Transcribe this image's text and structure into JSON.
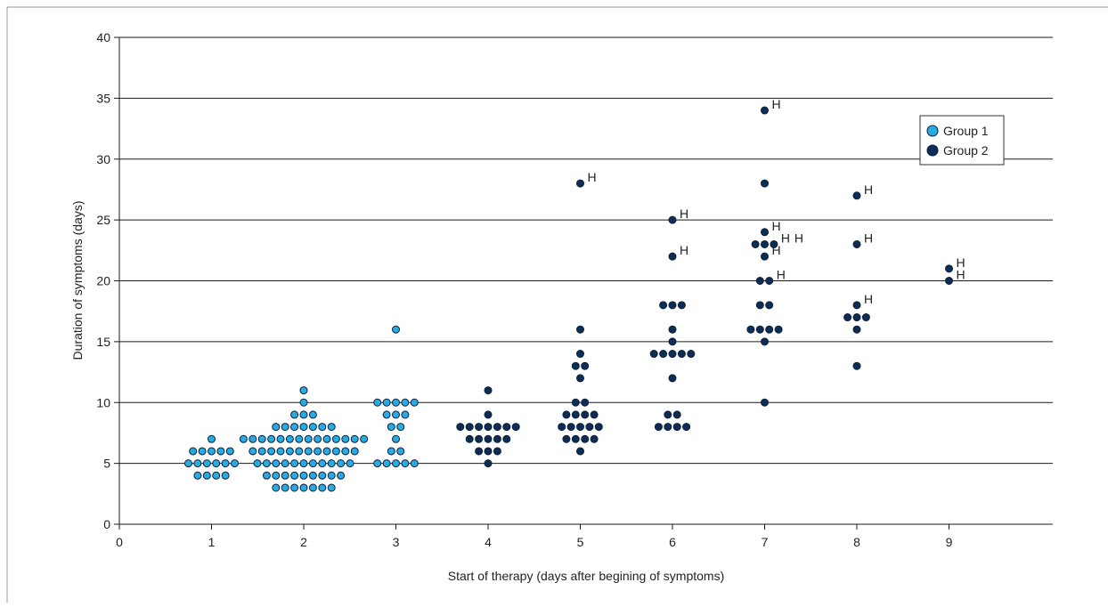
{
  "chart_data": {
    "type": "scatter",
    "title": "",
    "xlabel": "Start of therapy (days after begining of symptoms)",
    "ylabel": "Duration of symptoms (days)",
    "xlim": [
      0,
      10
    ],
    "ylim": [
      0,
      40
    ],
    "x_ticks": [
      "0",
      "1",
      "2",
      "3",
      "4",
      "5",
      "6",
      "7",
      "8",
      "9"
    ],
    "y_ticks": [
      "0",
      "5",
      "10",
      "15",
      "20",
      "25",
      "30",
      "35",
      "40"
    ],
    "grid": "horizontal",
    "legend_position": "top-right",
    "hospitalization_marker": "H",
    "series": [
      {
        "name": "Group 1",
        "color": "#29abe2",
        "groups": [
          {
            "x": 1,
            "counts": {
              "4": 4,
              "5": 6,
              "6": 5,
              "7": 1
            }
          },
          {
            "x": 2,
            "counts": {
              "3": 7,
              "4": 9,
              "5": 11,
              "6": 12,
              "7": 14,
              "8": 7,
              "9": 3,
              "10": 1,
              "11": 1
            }
          },
          {
            "x": 3,
            "counts": {
              "5": 5,
              "6": 2,
              "7": 1,
              "8": 2,
              "9": 3,
              "10": 5,
              "16": 1
            }
          }
        ]
      },
      {
        "name": "Group 2",
        "color": "#0d2d55",
        "groups": [
          {
            "x": 4,
            "counts": {
              "5": 1,
              "6": 3,
              "7": 5,
              "8": 7,
              "9": 1,
              "11": 1
            }
          },
          {
            "x": 5,
            "counts": {
              "6": 1,
              "7": 4,
              "8": 5,
              "9": 4,
              "10": 2,
              "12": 1,
              "13": 2,
              "14": 1,
              "16": 1,
              "28": 1
            }
          },
          {
            "x": 6,
            "counts": {
              "8": 4,
              "9": 2,
              "12": 1,
              "14": 5,
              "15": 1,
              "16": 1,
              "18": 3,
              "22": 1,
              "25": 1
            }
          },
          {
            "x": 7,
            "counts": {
              "10": 1,
              "15": 1,
              "16": 4,
              "18": 2,
              "20": 2,
              "22": 1,
              "23": 3,
              "24": 1,
              "28": 1,
              "34": 1
            }
          },
          {
            "x": 8,
            "counts": {
              "13": 1,
              "16": 1,
              "17": 3,
              "18": 1,
              "23": 1,
              "27": 1
            }
          },
          {
            "x": 9,
            "counts": {
              "20": 1,
              "21": 1
            }
          }
        ]
      }
    ],
    "annotations": [
      {
        "text": "H",
        "x": 5,
        "y": 28
      },
      {
        "text": "H",
        "x": 6,
        "y": 25
      },
      {
        "text": "H",
        "x": 6,
        "y": 22
      },
      {
        "text": "H",
        "x": 7,
        "y": 34
      },
      {
        "text": "H",
        "x": 7,
        "y": 24
      },
      {
        "text": "H",
        "x": 7,
        "y": 23
      },
      {
        "text": "H",
        "x": 7,
        "y": 23
      },
      {
        "text": "H",
        "x": 7,
        "y": 22
      },
      {
        "text": "H",
        "x": 7,
        "y": 20
      },
      {
        "text": "H",
        "x": 8,
        "y": 27
      },
      {
        "text": "H",
        "x": 8,
        "y": 23
      },
      {
        "text": "H",
        "x": 8,
        "y": 18
      },
      {
        "text": "H",
        "x": 9,
        "y": 21
      },
      {
        "text": "H",
        "x": 9,
        "y": 20
      }
    ]
  }
}
